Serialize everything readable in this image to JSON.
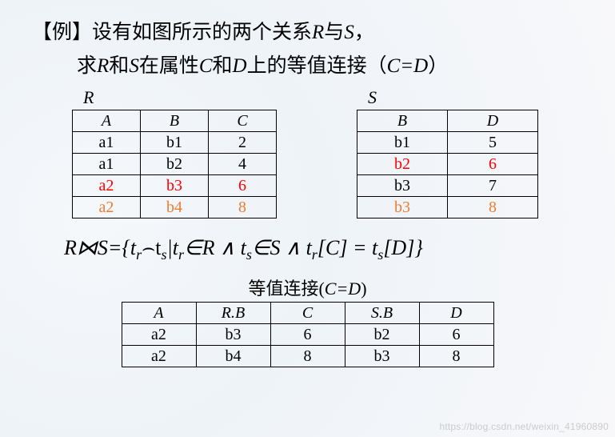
{
  "heading1_pre": "【例】设有如图所示的两个关系",
  "heading1_R": "R",
  "heading1_mid": "与",
  "heading1_S": "S",
  "heading1_post": "，",
  "heading2_pre": "求",
  "heading2_R": "R",
  "heading2_mid1": "和",
  "heading2_S": "S",
  "heading2_mid2": "在属性",
  "heading2_C": "C",
  "heading2_mid3": "和",
  "heading2_D": "D",
  "heading2_mid4": "上的等值连接（",
  "heading2_eq": "C=D",
  "heading2_post": "）",
  "tableR": {
    "label": "R",
    "cols": [
      "A",
      "B",
      "C"
    ],
    "rows": [
      {
        "cells": [
          "a1",
          "b1",
          "2"
        ],
        "color": "#000000"
      },
      {
        "cells": [
          "a1",
          "b2",
          "4"
        ],
        "color": "#000000"
      },
      {
        "cells": [
          "a2",
          "b3",
          "6"
        ],
        "color": "#ff0000"
      },
      {
        "cells": [
          "a2",
          "b4",
          "8"
        ],
        "color": "#ed7d31"
      }
    ],
    "colWidthClass": "colR"
  },
  "tableS": {
    "label": "S",
    "cols": [
      "B",
      "D"
    ],
    "rows": [
      {
        "cells": [
          "b1",
          "5"
        ],
        "color": "#000000"
      },
      {
        "cells": [
          "b2",
          "6"
        ],
        "color": "#ff0000"
      },
      {
        "cells": [
          "b3",
          "7"
        ],
        "color": "#000000"
      },
      {
        "cells": [
          "b3",
          "8"
        ],
        "color": "#ed7d31"
      }
    ],
    "colWidthClass": "colS"
  },
  "formula": {
    "p1": "R⋈S={t",
    "sub_r1": "r",
    "p2": "⌢t",
    "sub_s1": "s",
    "p3": "|t",
    "sub_r2": "r",
    "p4": "∈R ∧ t",
    "sub_s2": "s",
    "p5": "∈S ∧ t",
    "sub_r3": "r",
    "p6": "[C] = t",
    "sub_s3": "s",
    "p7": "[D]}"
  },
  "result": {
    "title_pre": "等值连接(",
    "title_eq": "C=D",
    "title_post": ")",
    "cols": [
      "A",
      "R.B",
      "C",
      "S.B",
      "D"
    ],
    "rows": [
      [
        "a2",
        "b3",
        "6",
        "b2",
        "6"
      ],
      [
        "a2",
        "b4",
        "8",
        "b3",
        "8"
      ]
    ],
    "colWidthClass": "colRes"
  },
  "watermark": "https://blog.csdn.net/weixin_41960890"
}
